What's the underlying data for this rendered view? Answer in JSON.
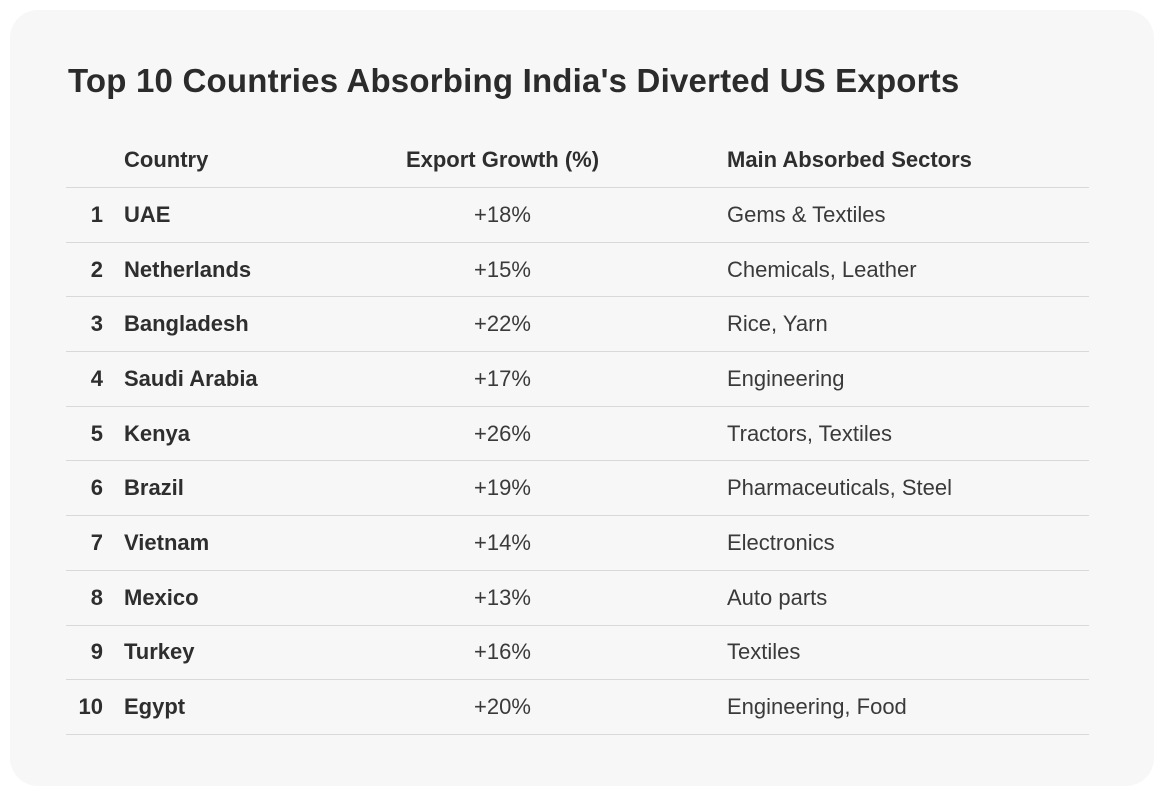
{
  "title": "Top 10 Countries Absorbing India's Diverted US Exports",
  "colors": {
    "page_background": "#ffffff",
    "card_background": "#f7f7f7",
    "title_text": "#2b2b2b",
    "emphasis_text": "#2e2e2e",
    "body_text": "#3a3a3a",
    "divider": "#d9d9d9"
  },
  "chart_data": {
    "type": "table",
    "title": "Top 10 Countries Absorbing India's Diverted US Exports",
    "columns": [
      "Country",
      "Export Growth (%)",
      "Main Absorbed Sectors"
    ],
    "rows": [
      {
        "rank": "1",
        "country": "UAE",
        "growth_pct": 18,
        "growth_label": "+18%",
        "sectors": "Gems & Textiles"
      },
      {
        "rank": "2",
        "country": "Netherlands",
        "growth_pct": 15,
        "growth_label": "+15%",
        "sectors": "Chemicals, Leather"
      },
      {
        "rank": "3",
        "country": "Bangladesh",
        "growth_pct": 22,
        "growth_label": "+22%",
        "sectors": "Rice, Yarn"
      },
      {
        "rank": "4",
        "country": "Saudi Arabia",
        "growth_pct": 17,
        "growth_label": "+17%",
        "sectors": "Engineering"
      },
      {
        "rank": "5",
        "country": "Kenya",
        "growth_pct": 26,
        "growth_label": "+26%",
        "sectors": "Tractors, Textiles"
      },
      {
        "rank": "6",
        "country": "Brazil",
        "growth_pct": 19,
        "growth_label": "+19%",
        "sectors": "Pharmaceuticals, Steel"
      },
      {
        "rank": "7",
        "country": "Vietnam",
        "growth_pct": 14,
        "growth_label": "+14%",
        "sectors": "Electronics"
      },
      {
        "rank": "8",
        "country": "Mexico",
        "growth_pct": 13,
        "growth_label": "+13%",
        "sectors": "Auto parts"
      },
      {
        "rank": "9",
        "country": "Turkey",
        "growth_pct": 16,
        "growth_label": "+16%",
        "sectors": "Textiles"
      },
      {
        "rank": "10",
        "country": "Egypt",
        "growth_pct": 20,
        "growth_label": "+20%",
        "sectors": "Engineering, Food"
      }
    ]
  }
}
